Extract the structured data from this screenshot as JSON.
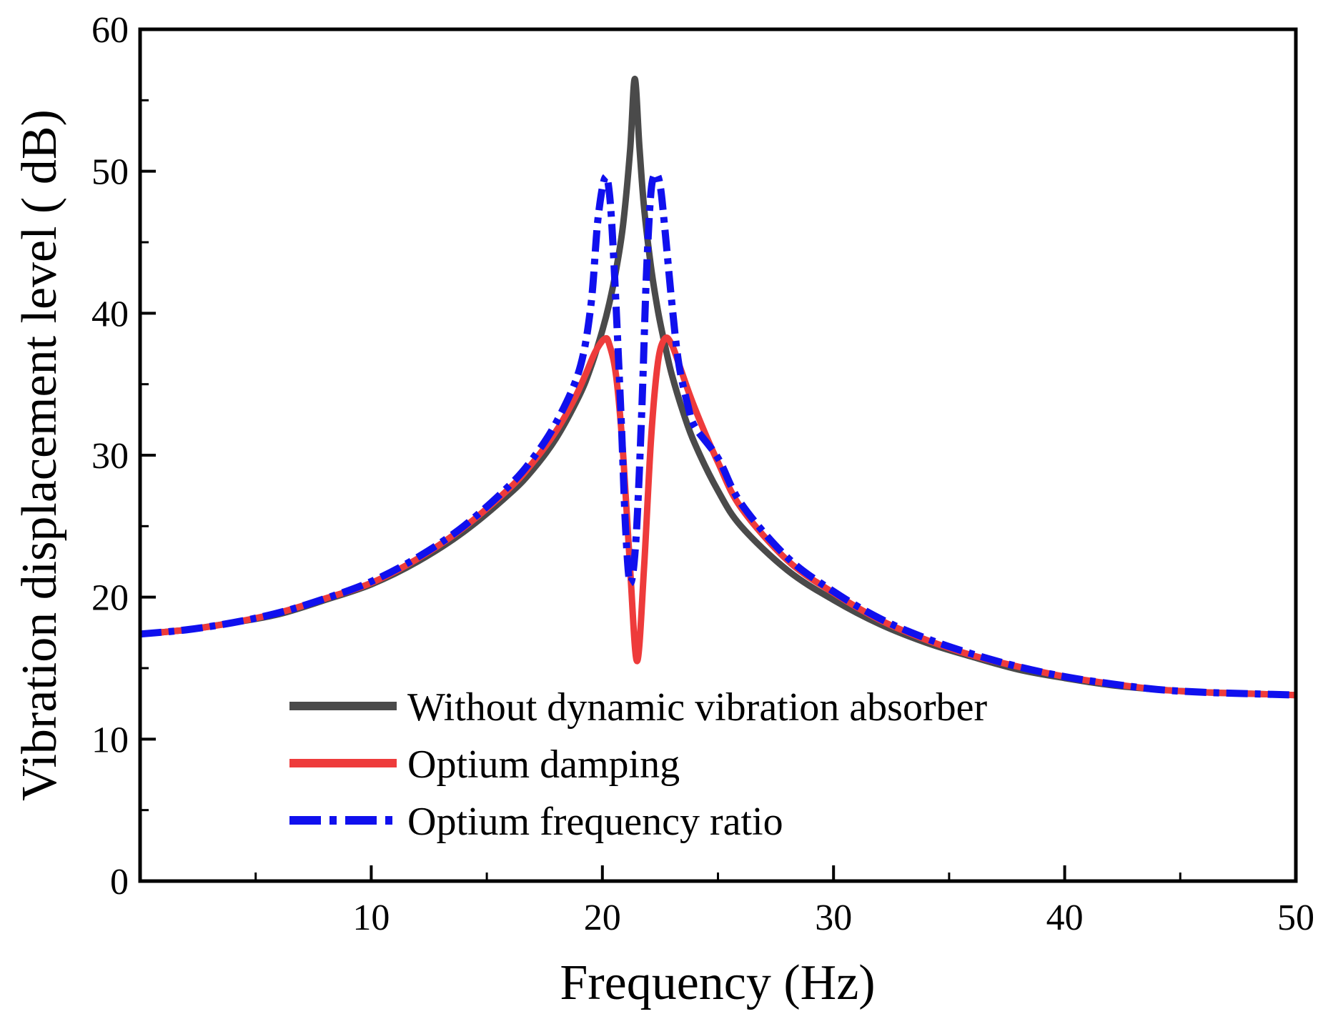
{
  "chart_data": {
    "type": "line",
    "title": "",
    "xlabel": "Frequency (Hz)",
    "ylabel": "Vibration displacement level ( dB)",
    "xlim": [
      0,
      50
    ],
    "ylim": [
      0,
      60
    ],
    "xticks": [
      10,
      20,
      30,
      40,
      50
    ],
    "yticks": [
      0,
      10,
      20,
      30,
      40,
      50,
      60
    ],
    "grid": false,
    "legend_position": "bottom-center",
    "series": [
      {
        "name": "Without dynamic vibration absorber",
        "color": "#4a4a4a",
        "style": "solid",
        "x": [
          0,
          2,
          4,
          6,
          8,
          10,
          12,
          14,
          16,
          17,
          18,
          19,
          19.5,
          20,
          20.3,
          20.6,
          20.9,
          21.2,
          21.4,
          21.6,
          21.8,
          22.1,
          22.4,
          22.7,
          23,
          23.5,
          24,
          25,
          26,
          28,
          30,
          32,
          34,
          36,
          38,
          40,
          42,
          44,
          46,
          48,
          50
        ],
        "y": [
          17.4,
          17.7,
          18.2,
          18.8,
          19.8,
          20.9,
          22.5,
          24.6,
          27.3,
          29,
          31.2,
          34.2,
          36.2,
          38.8,
          40.7,
          43.1,
          46.3,
          51.5,
          56.5,
          51.8,
          47.5,
          43.3,
          40.2,
          37.8,
          35.7,
          33,
          30.8,
          27.5,
          25,
          21.9,
          19.8,
          18.1,
          16.8,
          15.8,
          14.9,
          14.3,
          13.8,
          13.5,
          13.3,
          13.2,
          13.1
        ]
      },
      {
        "name": "Optium damping",
        "color": "#ee3b3b",
        "style": "solid",
        "x": [
          0,
          2,
          4,
          6,
          8,
          10,
          12,
          14,
          16,
          17,
          18,
          18.8,
          19.3,
          19.7,
          20.1,
          20.3,
          20.6,
          20.9,
          21.2,
          21.5,
          21.8,
          22.1,
          22.4,
          22.7,
          23,
          23.4,
          24,
          25,
          26,
          28,
          30,
          32,
          34,
          36,
          38,
          40,
          42,
          44,
          46,
          48,
          50
        ],
        "y": [
          17.4,
          17.7,
          18.2,
          18.9,
          19.9,
          21,
          22.7,
          24.9,
          27.7,
          29.5,
          31.7,
          34,
          35.8,
          37.3,
          38.2,
          37.8,
          35.5,
          30,
          22,
          15.5,
          22,
          31,
          36.5,
          38.2,
          37.8,
          36,
          33.3,
          29.5,
          26.3,
          22.6,
          20.3,
          18.4,
          17,
          15.9,
          15.1,
          14.4,
          13.9,
          13.5,
          13.3,
          13.2,
          13.1
        ]
      },
      {
        "name": "Optium frequency ratio",
        "color": "#1010ee",
        "style": "dashdot",
        "x": [
          0,
          2,
          4,
          6,
          8,
          10,
          12,
          14,
          16,
          17,
          18,
          19,
          19.5,
          19.8,
          20.1,
          20.3,
          20.5,
          20.8,
          21.0,
          21.2,
          21.45,
          21.7,
          21.9,
          22.1,
          22.3,
          22.5,
          22.7,
          23.0,
          23.3,
          23.7,
          24,
          25,
          26,
          28,
          30,
          32,
          34,
          36,
          38,
          40,
          42,
          44,
          46,
          48,
          50
        ],
        "y": [
          17.4,
          17.7,
          18.2,
          18.9,
          19.9,
          21.1,
          22.8,
          25,
          27.9,
          29.8,
          32.3,
          36,
          40.5,
          46.5,
          49.5,
          48.5,
          43.5,
          33,
          25,
          21,
          24,
          33,
          42.5,
          48.5,
          49.8,
          49,
          46,
          40.8,
          36.5,
          33.5,
          32,
          29.8,
          26.6,
          22.8,
          20.4,
          18.5,
          17.1,
          16,
          15.1,
          14.4,
          13.9,
          13.5,
          13.3,
          13.2,
          13.1
        ]
      }
    ]
  }
}
